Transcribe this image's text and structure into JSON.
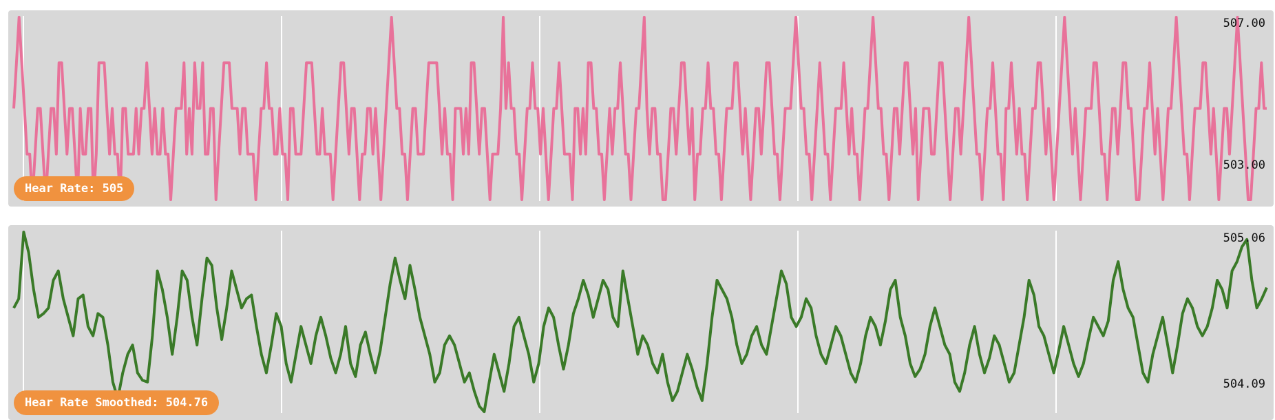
{
  "colors": {
    "panel_background": "#d8d8d8",
    "grid": "#ffffff",
    "raw_line": "#e8729a",
    "smoothed_line": "#3a7a28",
    "badge": "#f0923f",
    "badge_text": "#ffffff"
  },
  "chart_data": [
    {
      "type": "line",
      "title": "",
      "ylim": [
        503.0,
        507.0
      ],
      "y_tick_labels": [
        "507.00",
        "503.00"
      ],
      "vertical_grid_count": 5,
      "grid": true,
      "badge": {
        "label": "Hear Rate",
        "value": "505",
        "text": "Hear Rate: 505"
      },
      "series": [
        {
          "color": "#e8729a",
          "values": [
            505,
            506,
            507,
            506,
            505,
            504,
            504,
            503,
            504,
            505,
            505,
            504,
            503,
            504,
            505,
            505,
            504,
            506,
            506,
            505,
            504,
            505,
            505,
            504,
            503,
            505,
            504,
            504,
            505,
            505,
            503,
            504,
            506,
            506,
            506,
            505,
            504,
            505,
            504,
            504,
            503,
            505,
            505,
            504,
            504,
            504,
            505,
            504,
            505,
            505,
            506,
            505,
            504,
            505,
            504,
            504,
            505,
            504,
            504,
            503,
            504,
            505,
            505,
            505,
            506,
            504,
            505,
            504,
            506,
            505,
            505,
            506,
            504,
            504,
            505,
            505,
            503,
            504,
            505,
            506,
            506,
            506,
            505,
            505,
            505,
            504,
            505,
            505,
            504,
            504,
            504,
            503,
            504,
            505,
            505,
            506,
            505,
            505,
            504,
            504,
            505,
            504,
            504,
            503,
            505,
            505,
            504,
            504,
            504,
            505,
            506,
            506,
            506,
            505,
            504,
            504,
            505,
            504,
            504,
            504,
            503,
            504,
            505,
            506,
            506,
            505,
            504,
            505,
            505,
            504,
            503,
            504,
            504,
            505,
            505,
            504,
            505,
            504,
            503,
            504,
            505,
            506,
            507,
            506,
            505,
            505,
            504,
            504,
            503,
            504,
            505,
            505,
            504,
            504,
            504,
            505,
            506,
            506,
            506,
            506,
            505,
            504,
            505,
            504,
            504,
            503,
            505,
            505,
            505,
            504,
            505,
            504,
            506,
            506,
            505,
            504,
            505,
            505,
            504,
            503,
            504,
            504,
            504,
            505,
            507,
            505,
            506,
            505,
            505,
            504,
            504,
            503,
            504,
            505,
            505,
            506,
            505,
            505,
            504,
            505,
            504,
            503,
            504,
            505,
            505,
            506,
            505,
            504,
            504,
            504,
            503,
            505,
            505,
            504,
            505,
            504,
            506,
            506,
            505,
            505,
            504,
            504,
            503,
            504,
            505,
            504,
            505,
            505,
            506,
            505,
            504,
            504,
            503,
            504,
            505,
            505,
            506,
            507,
            505,
            504,
            505,
            505,
            504,
            504,
            503,
            503,
            504,
            505,
            505,
            504,
            505,
            506,
            506,
            505,
            504,
            505,
            503,
            504,
            504,
            505,
            505,
            506,
            505,
            505,
            504,
            504,
            503,
            504,
            505,
            505,
            505,
            506,
            506,
            505,
            504,
            505,
            504,
            503,
            504,
            505,
            505,
            504,
            505,
            506,
            506,
            505,
            504,
            504,
            503,
            504,
            505,
            505,
            505,
            506,
            507,
            506,
            505,
            505,
            504,
            504,
            503,
            504,
            505,
            506,
            505,
            504,
            504,
            503,
            504,
            505,
            505,
            505,
            506,
            505,
            504,
            505,
            504,
            504,
            503,
            504,
            505,
            505,
            506,
            507,
            506,
            505,
            505,
            504,
            504,
            503,
            504,
            505,
            505,
            504,
            505,
            506,
            506,
            505,
            504,
            505,
            503,
            504,
            505,
            505,
            505,
            504,
            504,
            505,
            506,
            506,
            505,
            504,
            503,
            504,
            505,
            505,
            504,
            505,
            506,
            507,
            506,
            505,
            504,
            504,
            503,
            504,
            505,
            505,
            506,
            505,
            504,
            504,
            503,
            505,
            505,
            506,
            505,
            504,
            505,
            504,
            504,
            503,
            504,
            505,
            505,
            506,
            506,
            505,
            504,
            505,
            504,
            503,
            504,
            505,
            506,
            507,
            506,
            505,
            504,
            505,
            504,
            503,
            504,
            505,
            505,
            505,
            506,
            506,
            505,
            504,
            504,
            503,
            504,
            505,
            505,
            504,
            505,
            506,
            506,
            505,
            505,
            504,
            503,
            503,
            504,
            505,
            505,
            506,
            505,
            504,
            505,
            504,
            503,
            504,
            505,
            505,
            506,
            507,
            506,
            505,
            504,
            504,
            503,
            504,
            505,
            505,
            505,
            506,
            506,
            505,
            504,
            505,
            504,
            503,
            504,
            505,
            505,
            504,
            505,
            506,
            507,
            506,
            505,
            504,
            503,
            503,
            504,
            505,
            505,
            506,
            505,
            505
          ]
        }
      ]
    },
    {
      "type": "line",
      "title": "",
      "ylim": [
        504.09,
        505.06
      ],
      "y_tick_labels": [
        "505.06",
        "504.09"
      ],
      "vertical_grid_count": 5,
      "grid": true,
      "badge": {
        "label": "Hear Rate Smoothed",
        "value": "504.76",
        "text": "Hear Rate Smoothed: 504.76"
      },
      "series": [
        {
          "color": "#3a7a28",
          "values": [
            504.65,
            504.7,
            505.06,
            504.95,
            504.75,
            504.6,
            504.62,
            504.65,
            504.8,
            504.85,
            504.7,
            504.6,
            504.5,
            504.7,
            504.72,
            504.55,
            504.5,
            504.62,
            504.6,
            504.45,
            504.25,
            504.16,
            504.3,
            504.4,
            504.45,
            504.3,
            504.26,
            504.25,
            504.5,
            504.85,
            504.75,
            504.6,
            504.4,
            504.6,
            504.85,
            504.8,
            504.6,
            504.45,
            504.7,
            504.92,
            504.88,
            504.65,
            504.48,
            504.65,
            504.85,
            504.75,
            504.65,
            504.7,
            504.72,
            504.55,
            504.4,
            504.3,
            504.45,
            504.62,
            504.55,
            504.35,
            504.25,
            504.4,
            504.55,
            504.45,
            504.35,
            504.5,
            504.6,
            504.5,
            504.38,
            504.3,
            504.4,
            504.55,
            504.35,
            504.28,
            504.45,
            504.52,
            504.4,
            504.3,
            504.42,
            504.6,
            504.78,
            504.92,
            504.8,
            504.7,
            504.88,
            504.75,
            504.6,
            504.5,
            504.4,
            504.25,
            504.3,
            504.45,
            504.5,
            504.45,
            504.35,
            504.25,
            504.3,
            504.2,
            504.12,
            504.09,
            504.25,
            504.4,
            504.3,
            504.2,
            504.35,
            504.55,
            504.6,
            504.5,
            504.4,
            504.25,
            504.35,
            504.55,
            504.65,
            504.6,
            504.45,
            504.32,
            504.45,
            504.62,
            504.7,
            504.8,
            504.72,
            504.6,
            504.7,
            504.8,
            504.75,
            504.6,
            504.55,
            504.85,
            504.7,
            504.55,
            504.4,
            504.5,
            504.45,
            504.35,
            504.3,
            504.4,
            504.25,
            504.15,
            504.2,
            504.3,
            504.4,
            504.32,
            504.22,
            504.15,
            504.35,
            504.6,
            504.8,
            504.75,
            504.7,
            504.6,
            504.45,
            504.35,
            504.4,
            504.5,
            504.55,
            504.45,
            504.4,
            504.55,
            504.7,
            504.85,
            504.78,
            504.6,
            504.55,
            504.6,
            504.7,
            504.65,
            504.5,
            504.4,
            504.35,
            504.45,
            504.55,
            504.5,
            504.4,
            504.3,
            504.25,
            504.35,
            504.5,
            504.6,
            504.55,
            504.45,
            504.58,
            504.75,
            504.8,
            504.6,
            504.5,
            504.35,
            504.28,
            504.32,
            504.4,
            504.55,
            504.65,
            504.55,
            504.45,
            504.4,
            504.25,
            504.2,
            504.3,
            504.45,
            504.55,
            504.4,
            504.3,
            504.38,
            504.5,
            504.45,
            504.35,
            504.25,
            504.3,
            504.45,
            504.6,
            504.8,
            504.72,
            504.55,
            504.5,
            504.4,
            504.3,
            504.42,
            504.55,
            504.45,
            504.35,
            504.28,
            504.35,
            504.48,
            504.6,
            504.55,
            504.5,
            504.58,
            504.8,
            504.9,
            504.75,
            504.65,
            504.6,
            504.45,
            504.3,
            504.25,
            504.4,
            504.5,
            504.6,
            504.45,
            504.3,
            504.45,
            504.62,
            504.7,
            504.65,
            504.55,
            504.5,
            504.55,
            504.65,
            504.8,
            504.75,
            504.65,
            504.85,
            504.9,
            504.98,
            505.02,
            504.8,
            504.65,
            504.7,
            504.76
          ]
        }
      ]
    }
  ]
}
